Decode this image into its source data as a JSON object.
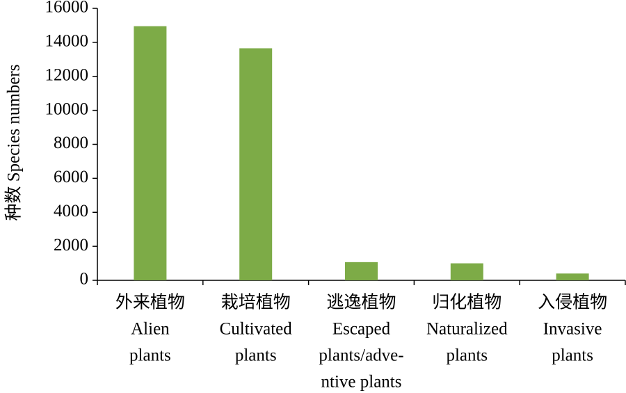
{
  "chart_data": {
    "type": "bar",
    "y_label": "种数 Species numbers",
    "categories": [
      [
        "外来植物",
        "Alien",
        "plants"
      ],
      [
        "栽培植物",
        "Cultivated",
        "plants"
      ],
      [
        "逃逸植物",
        "Escaped",
        "plants/adve-",
        "ntive plants"
      ],
      [
        "归化植物",
        "Naturalized",
        "plants"
      ],
      [
        "入侵植物",
        "Invasive",
        "plants"
      ]
    ],
    "values": [
      14950,
      13650,
      1070,
      1000,
      400
    ],
    "color": "#7dab47",
    "ylim": [
      0,
      16000
    ],
    "yticks": [
      0,
      2000,
      4000,
      6000,
      8000,
      10000,
      12000,
      14000,
      16000
    ],
    "grid": false
  }
}
